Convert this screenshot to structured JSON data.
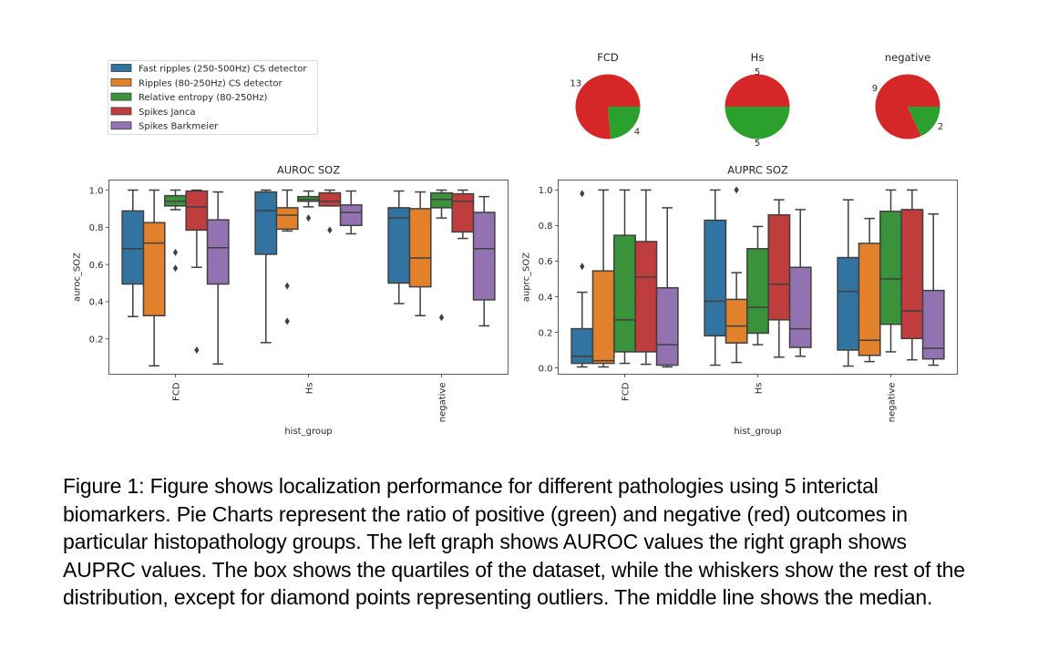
{
  "caption": "Figure 1: Figure shows localization performance for different pathologies using 5 interictal biomarkers. Pie Charts represent the ratio of positive (green) and negative (red) outcomes in particular histopathology groups. The left graph shows AUROC values the right graph shows AUPRC values. The box shows the quartiles of the dataset, while the whiskers show the rest of the distribution, except for diamond points representing outliers. The middle line shows the median.",
  "legend": {
    "placement": "top-left",
    "entries": [
      {
        "label": "Fast ripples (250-500Hz) CS detector",
        "color": "#3274a1"
      },
      {
        "label": "Ripples (80-250Hz) CS detector",
        "color": "#e1812c"
      },
      {
        "label": "Relative entropy (80-250Hz)",
        "color": "#3a923a"
      },
      {
        "label": "Spikes Janca",
        "color": "#c03d3e"
      },
      {
        "label": "Spikes Barkmeier",
        "color": "#9372b2"
      }
    ]
  },
  "chart_data": [
    {
      "type": "pie",
      "title": "FCD",
      "slices": [
        {
          "label": "negative",
          "value": 13,
          "color": "#d62728"
        },
        {
          "label": "positive",
          "value": 4,
          "color": "#2ca02c"
        }
      ]
    },
    {
      "type": "pie",
      "title": "Hs",
      "slices": [
        {
          "label": "negative",
          "value": 5,
          "color": "#d62728"
        },
        {
          "label": "positive",
          "value": 5,
          "color": "#2ca02c"
        }
      ]
    },
    {
      "type": "pie",
      "title": "negative",
      "slices": [
        {
          "label": "negative",
          "value": 9,
          "color": "#d62728"
        },
        {
          "label": "positive",
          "value": 2,
          "color": "#2ca02c"
        }
      ]
    },
    {
      "type": "box",
      "title": "AUROC SOZ",
      "xlabel": "hist_group",
      "ylabel": "auroc_SOZ",
      "categories": [
        "FCD",
        "Hs",
        "negative"
      ],
      "yticks": [
        0.2,
        0.4,
        0.6,
        0.8,
        1.0
      ],
      "ylim": [
        0.01,
        1.054
      ],
      "grid": false,
      "series": [
        {
          "name": "Fast ripples (250-500Hz) CS detector",
          "boxes": [
            {
              "whislo": 0.32,
              "q1": 0.495,
              "med": 0.685,
              "q3": 0.888,
              "whishi": 1.0,
              "fliers": []
            },
            {
              "whislo": 0.18,
              "q1": 0.655,
              "med": 0.89,
              "q3": 0.99,
              "whishi": 1.0,
              "fliers": []
            },
            {
              "whislo": 0.39,
              "q1": 0.5,
              "med": 0.85,
              "q3": 0.905,
              "whishi": 0.995,
              "fliers": []
            }
          ]
        },
        {
          "name": "Ripples (80-250Hz) CS detector",
          "boxes": [
            {
              "whislo": 0.055,
              "q1": 0.325,
              "med": 0.715,
              "q3": 0.825,
              "whishi": 1.0,
              "fliers": []
            },
            {
              "whislo": 0.78,
              "q1": 0.79,
              "med": 0.865,
              "q3": 0.905,
              "whishi": 1.0,
              "fliers": [
                0.485,
                0.295
              ]
            },
            {
              "whislo": 0.325,
              "q1": 0.48,
              "med": 0.635,
              "q3": 0.9,
              "whishi": 0.99,
              "fliers": []
            }
          ]
        },
        {
          "name": "Relative entropy (80-250Hz)",
          "boxes": [
            {
              "whislo": 0.895,
              "q1": 0.915,
              "med": 0.94,
              "q3": 0.97,
              "whishi": 1.0,
              "fliers": [
                0.665,
                0.58
              ]
            },
            {
              "whislo": 0.91,
              "q1": 0.94,
              "med": 0.95,
              "q3": 0.965,
              "whishi": 0.995,
              "fliers": [
                0.85
              ]
            },
            {
              "whislo": 0.85,
              "q1": 0.905,
              "med": 0.95,
              "q3": 0.985,
              "whishi": 1.0,
              "fliers": [
                0.315
              ]
            }
          ]
        },
        {
          "name": "Spikes Janca",
          "boxes": [
            {
              "whislo": 0.585,
              "q1": 0.785,
              "med": 0.91,
              "q3": 0.995,
              "whishi": 1.0,
              "fliers": [
                0.14
              ]
            },
            {
              "whislo": 0.915,
              "q1": 0.915,
              "med": 0.94,
              "q3": 0.985,
              "whishi": 1.0,
              "fliers": [
                0.785
              ]
            },
            {
              "whislo": 0.74,
              "q1": 0.775,
              "med": 0.94,
              "q3": 0.98,
              "whishi": 1.0,
              "fliers": []
            }
          ]
        },
        {
          "name": "Spikes Barkmeier",
          "boxes": [
            {
              "whislo": 0.065,
              "q1": 0.495,
              "med": 0.69,
              "q3": 0.84,
              "whishi": 0.99,
              "fliers": []
            },
            {
              "whislo": 0.765,
              "q1": 0.81,
              "med": 0.88,
              "q3": 0.92,
              "whishi": 0.995,
              "fliers": []
            },
            {
              "whislo": 0.27,
              "q1": 0.41,
              "med": 0.685,
              "q3": 0.88,
              "whishi": 0.965,
              "fliers": []
            }
          ]
        }
      ]
    },
    {
      "type": "box",
      "title": "AUPRC SOZ",
      "xlabel": "hist_group",
      "ylabel": "auprc_SOZ",
      "categories": [
        "FCD",
        "Hs",
        "negative"
      ],
      "yticks": [
        0.0,
        0.2,
        0.4,
        0.6,
        0.8,
        1.0
      ],
      "ylim": [
        -0.036,
        1.056
      ],
      "grid": false,
      "series": [
        {
          "name": "Fast ripples (250-500Hz) CS detector",
          "boxes": [
            {
              "whislo": 0.005,
              "q1": 0.025,
              "med": 0.065,
              "q3": 0.22,
              "whishi": 0.425,
              "fliers": [
                0.98,
                0.57
              ]
            },
            {
              "whislo": 0.015,
              "q1": 0.18,
              "med": 0.375,
              "q3": 0.83,
              "whishi": 1.0,
              "fliers": []
            },
            {
              "whislo": 0.01,
              "q1": 0.1,
              "med": 0.43,
              "q3": 0.62,
              "whishi": 0.945,
              "fliers": []
            }
          ]
        },
        {
          "name": "Ripples (80-250Hz) CS detector",
          "boxes": [
            {
              "whislo": 0.005,
              "q1": 0.025,
              "med": 0.04,
              "q3": 0.545,
              "whishi": 1.0,
              "fliers": []
            },
            {
              "whislo": 0.03,
              "q1": 0.14,
              "med": 0.235,
              "q3": 0.385,
              "whishi": 0.535,
              "fliers": [
                1.0
              ]
            },
            {
              "whislo": 0.035,
              "q1": 0.07,
              "med": 0.155,
              "q3": 0.7,
              "whishi": 0.84,
              "fliers": []
            }
          ]
        },
        {
          "name": "Relative entropy (80-250Hz)",
          "boxes": [
            {
              "whislo": 0.025,
              "q1": 0.09,
              "med": 0.27,
              "q3": 0.745,
              "whishi": 1.0,
              "fliers": []
            },
            {
              "whislo": 0.13,
              "q1": 0.195,
              "med": 0.34,
              "q3": 0.67,
              "whishi": 0.795,
              "fliers": []
            },
            {
              "whislo": 0.09,
              "q1": 0.245,
              "med": 0.5,
              "q3": 0.88,
              "whishi": 1.0,
              "fliers": []
            }
          ]
        },
        {
          "name": "Spikes Janca",
          "boxes": [
            {
              "whislo": 0.02,
              "q1": 0.09,
              "med": 0.51,
              "q3": 0.71,
              "whishi": 1.0,
              "fliers": []
            },
            {
              "whislo": 0.06,
              "q1": 0.27,
              "med": 0.47,
              "q3": 0.86,
              "whishi": 0.945,
              "fliers": []
            },
            {
              "whislo": 0.045,
              "q1": 0.165,
              "med": 0.32,
              "q3": 0.89,
              "whishi": 1.0,
              "fliers": []
            }
          ]
        },
        {
          "name": "Spikes Barkmeier",
          "boxes": [
            {
              "whislo": 0.005,
              "q1": 0.015,
              "med": 0.13,
              "q3": 0.45,
              "whishi": 0.9,
              "fliers": []
            },
            {
              "whislo": 0.065,
              "q1": 0.115,
              "med": 0.22,
              "q3": 0.565,
              "whishi": 0.89,
              "fliers": []
            },
            {
              "whislo": 0.015,
              "q1": 0.05,
              "med": 0.11,
              "q3": 0.435,
              "whishi": 0.865,
              "fliers": []
            }
          ]
        }
      ]
    }
  ]
}
